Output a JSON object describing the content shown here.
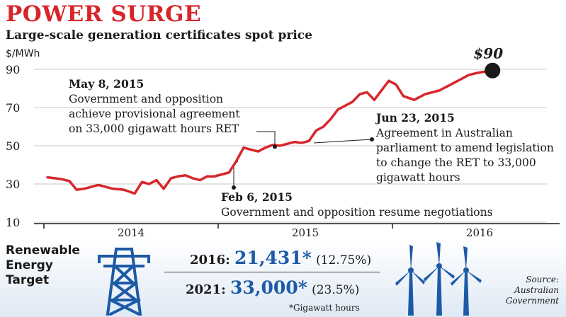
{
  "title": "POWER SURGE",
  "subtitle": "Large-scale generation certificates spot price",
  "colors": {
    "line": "#d7262b",
    "title": "#d7262b",
    "accent": "#1c5aa6",
    "marker": "#1a1a1a"
  },
  "chart_data": {
    "type": "line",
    "ylabel": "$/MWh",
    "ylim": [
      10,
      90
    ],
    "yticks": [
      10,
      30,
      50,
      70,
      90
    ],
    "xticks": [
      "2014",
      "2015",
      "2016"
    ],
    "grid": true,
    "series": [
      {
        "x": [
          "2014-01",
          "2014-01",
          "2014-02",
          "2014-02",
          "2014-03",
          "2014-03",
          "2014-04",
          "2014-04",
          "2014-05",
          "2014-05",
          "2014-06",
          "2014-07",
          "2014-07",
          "2014-08",
          "2014-08",
          "2014-09",
          "2014-09",
          "2014-10",
          "2014-10",
          "2014-11",
          "2014-11",
          "2014-12",
          "2014-12",
          "2015-01",
          "2015-01",
          "2015-02",
          "2015-02",
          "2015-03",
          "2015-03",
          "2015-04",
          "2015-04",
          "2015-05",
          "2015-05",
          "2015-06",
          "2015-06",
          "2015-07",
          "2015-07",
          "2015-08",
          "2015-08",
          "2015-09",
          "2015-09",
          "2015-10",
          "2015-10",
          "2015-11",
          "2015-11",
          "2015-12",
          "2015-12",
          "2016-01",
          "2016-01",
          "2016-02",
          "2016-03",
          "2016-03",
          "2016-04",
          "2016-04",
          "2016-05",
          "2016-05",
          "2016-06",
          "2016-06",
          "2016-07"
        ],
        "values": [
          33.5,
          33,
          32.5,
          31.5,
          27,
          27.5,
          28.5,
          29.5,
          28.5,
          27.5,
          27,
          25,
          31,
          30,
          32,
          27.5,
          33,
          34,
          34.5,
          33,
          32,
          34,
          34,
          35,
          36,
          42,
          49,
          48,
          47,
          49,
          50.5,
          50,
          51,
          52,
          51.5,
          52.5,
          58,
          60,
          64,
          69,
          71,
          73,
          77,
          78,
          74,
          79,
          84,
          82,
          76,
          74,
          77,
          78,
          79,
          81,
          83,
          85,
          87,
          88,
          89
        ]
      }
    ],
    "end_label": "$90",
    "annotations": [
      {
        "date": "May 8, 2015",
        "text": "Government and opposition achieve provisional agreement on 33,000 gigawatt hours RET"
      },
      {
        "date": "Jun 23, 2015",
        "text": "Agreement in Australian parliament to amend legislation to change the RET to 33,000 gigawatt hours"
      },
      {
        "date": "Feb 6, 2015",
        "text": "Government and opposition resume negotiations"
      }
    ]
  },
  "ret": {
    "label": [
      "Renewable",
      "Energy",
      "Target"
    ],
    "rows": [
      {
        "year": "2016:",
        "value": "21,431*",
        "pct": "(12.75%)"
      },
      {
        "year": "2021:",
        "value": "33,000*",
        "pct": "(23.5%)"
      }
    ],
    "footnote": "*Gigawatt hours",
    "source": [
      "Source:",
      "Australian",
      "Government"
    ]
  }
}
